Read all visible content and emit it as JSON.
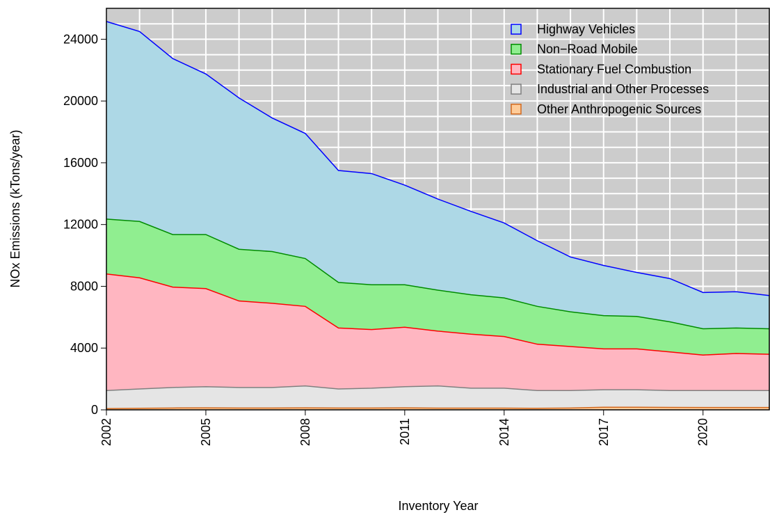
{
  "chart_data": {
    "type": "stacked-area",
    "xlabel": "Inventory Year",
    "ylabel": "NOx Emissions (kTons/year)",
    "x": [
      2002,
      2003,
      2004,
      2005,
      2006,
      2007,
      2008,
      2009,
      2010,
      2011,
      2012,
      2013,
      2014,
      2015,
      2016,
      2017,
      2018,
      2019,
      2020,
      2021,
      2022
    ],
    "series": [
      {
        "name": "Highway Vehicles",
        "color": "#0000ff",
        "fill": "#add8e6",
        "values": [
          12800,
          12300,
          11400,
          10400,
          9800,
          8650,
          8100,
          7250,
          7200,
          6450,
          5900,
          5400,
          4850,
          4250,
          3550,
          3250,
          2850,
          2800,
          2350,
          2350,
          2150
        ]
      },
      {
        "name": "Non−Road Mobile",
        "color": "#008b00",
        "fill": "#90ee90",
        "values": [
          3550,
          3650,
          3400,
          3500,
          3350,
          3350,
          3100,
          2950,
          2900,
          2750,
          2650,
          2550,
          2500,
          2450,
          2250,
          2150,
          2100,
          1950,
          1700,
          1650,
          1650
        ]
      },
      {
        "name": "Stationary Fuel Combustion",
        "color": "#ff0000",
        "fill": "#ffb6c1",
        "values": [
          7550,
          7200,
          6500,
          6350,
          5600,
          5450,
          5150,
          3950,
          3800,
          3850,
          3550,
          3500,
          3350,
          3000,
          2850,
          2650,
          2650,
          2500,
          2300,
          2400,
          2350
        ]
      },
      {
        "name": "Industrial and Other Processes",
        "color": "#7f7f7f",
        "fill": "#e5e5e5",
        "values": [
          1170,
          1250,
          1330,
          1370,
          1330,
          1330,
          1420,
          1230,
          1280,
          1370,
          1440,
          1290,
          1290,
          1150,
          1130,
          1130,
          1130,
          1090,
          1100,
          1100,
          1100
        ]
      },
      {
        "name": "Other Anthropogenic Sources",
        "color": "#d2691e",
        "fill": "#ffcc99",
        "values": [
          80,
          100,
          120,
          130,
          120,
          120,
          130,
          120,
          120,
          130,
          110,
          110,
          110,
          100,
          120,
          170,
          170,
          160,
          150,
          150,
          150
        ]
      }
    ],
    "xlim": [
      2002,
      2022
    ],
    "xticks": [
      2002,
      2005,
      2008,
      2011,
      2014,
      2017,
      2020
    ],
    "ylim": [
      0,
      26000
    ],
    "yticks": [
      0,
      4000,
      8000,
      12000,
      16000,
      20000,
      24000
    ],
    "ygrid": [
      0,
      1000,
      2000,
      3000,
      4000,
      5000,
      6000,
      7000,
      8000,
      9000,
      10000,
      11000,
      12000,
      13000,
      14000,
      15000,
      16000,
      17000,
      18000,
      19000,
      20000,
      21000,
      22000,
      23000,
      24000,
      25000,
      26000
    ],
    "grid": true,
    "legend": "top-right",
    "background": "#cccccc"
  }
}
